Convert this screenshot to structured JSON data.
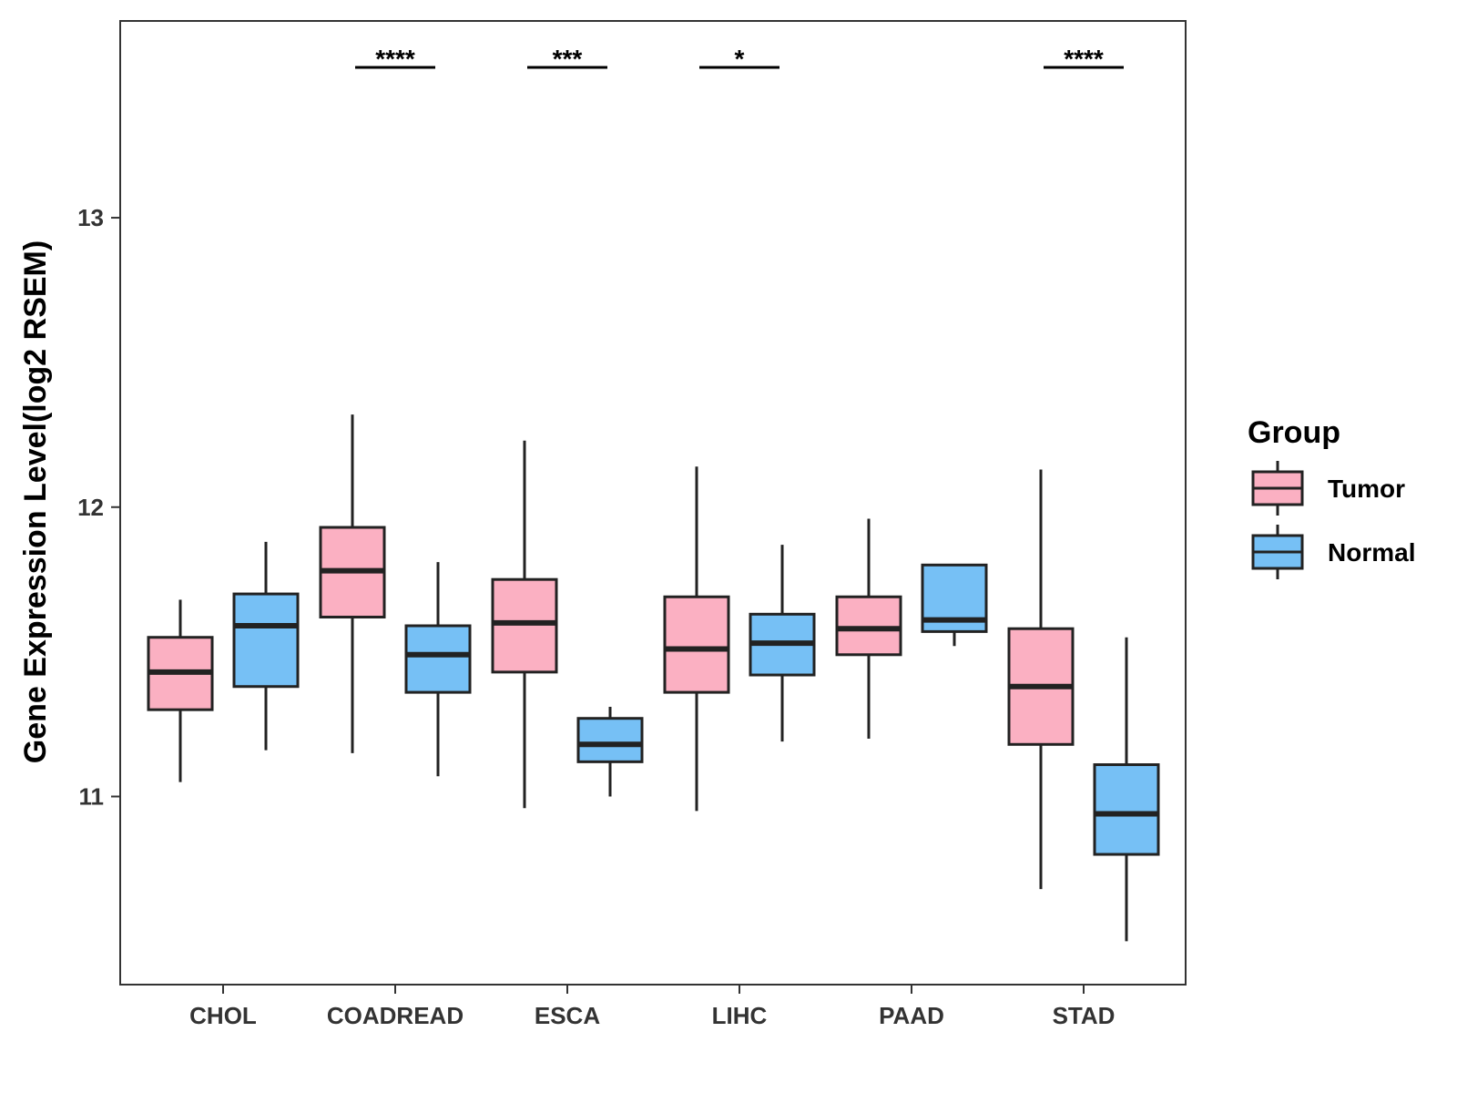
{
  "chart_data": {
    "type": "boxplot",
    "ylabel": "Gene Expression Level(log2 RSEM)",
    "xlabel": "",
    "ylim": [
      10.35,
      13.68
    ],
    "yticks": [
      11,
      12,
      13
    ],
    "categories": [
      "CHOL",
      "COADREAD",
      "ESCA",
      "LIHC",
      "PAAD",
      "STAD"
    ],
    "series": [
      {
        "name": "Tumor",
        "color": "#fbb0c2",
        "boxes": [
          {
            "min": 11.05,
            "q1": 11.3,
            "median": 11.43,
            "q3": 11.55,
            "max": 11.68
          },
          {
            "min": 11.15,
            "q1": 11.62,
            "median": 11.78,
            "q3": 11.93,
            "max": 12.32
          },
          {
            "min": 10.96,
            "q1": 11.43,
            "median": 11.6,
            "q3": 11.75,
            "max": 12.23
          },
          {
            "min": 10.95,
            "q1": 11.36,
            "median": 11.51,
            "q3": 11.69,
            "max": 12.14
          },
          {
            "min": 11.2,
            "q1": 11.49,
            "median": 11.58,
            "q3": 11.69,
            "max": 11.96
          },
          {
            "min": 10.68,
            "q1": 11.18,
            "median": 11.38,
            "q3": 11.58,
            "max": 12.13
          }
        ]
      },
      {
        "name": "Normal",
        "color": "#76c0f5",
        "boxes": [
          {
            "min": 11.16,
            "q1": 11.38,
            "median": 11.59,
            "q3": 11.7,
            "max": 11.88
          },
          {
            "min": 11.07,
            "q1": 11.36,
            "median": 11.49,
            "q3": 11.59,
            "max": 11.81
          },
          {
            "min": 11.0,
            "q1": 11.12,
            "median": 11.18,
            "q3": 11.27,
            "max": 11.31
          },
          {
            "min": 11.19,
            "q1": 11.42,
            "median": 11.53,
            "q3": 11.63,
            "max": 11.87
          },
          {
            "min": 11.52,
            "q1": 11.57,
            "median": 11.61,
            "q3": 11.8,
            "max": 11.8
          },
          {
            "min": 10.5,
            "q1": 10.8,
            "median": 10.94,
            "q3": 11.11,
            "max": 11.55
          }
        ]
      }
    ],
    "significance": [
      "",
      "****",
      "***",
      "*",
      "",
      "****"
    ],
    "legend": {
      "title": "Group",
      "position": "right",
      "entries": [
        "Tumor",
        "Normal"
      ]
    }
  }
}
